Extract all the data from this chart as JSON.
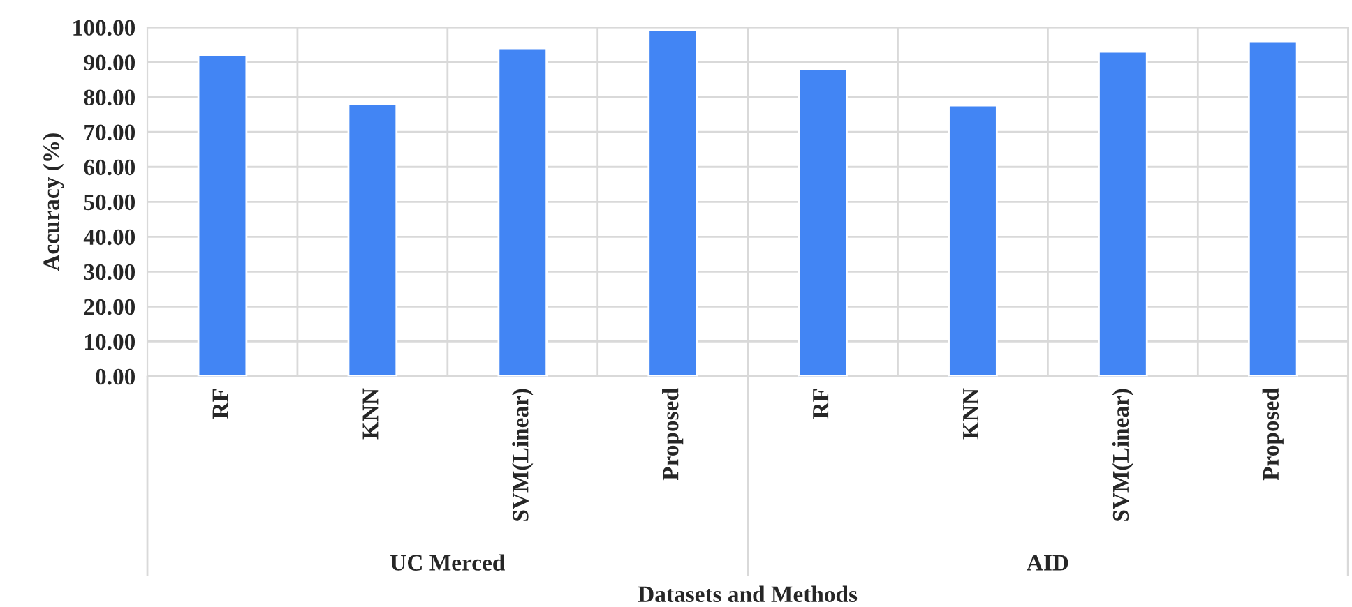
{
  "chart_data": {
    "type": "bar",
    "xlabel": "Datasets and Methods",
    "ylabel": "Accuracy (%)",
    "categories": [
      "RF",
      "KNN",
      "SVM(Linear)",
      "Proposed",
      "RF",
      "KNN",
      "SVM(Linear)",
      "Proposed"
    ],
    "values": [
      92.1,
      78.0,
      94.0,
      99.1,
      87.9,
      77.6,
      93.0,
      96.0
    ],
    "color": "#4285f4",
    "ylim": [
      0,
      100
    ],
    "yticks": [
      {
        "value": 0,
        "label": "0.00"
      },
      {
        "value": 10,
        "label": "10.00"
      },
      {
        "value": 20,
        "label": "20.00"
      },
      {
        "value": 30,
        "label": "30.00"
      },
      {
        "value": 40,
        "label": "40.00"
      },
      {
        "value": 50,
        "label": "50.00"
      },
      {
        "value": 60,
        "label": "60.00"
      },
      {
        "value": 70,
        "label": "70.00"
      },
      {
        "value": 80,
        "label": "80.00"
      },
      {
        "value": 90,
        "label": "90.00"
      },
      {
        "value": 100,
        "label": "100.00"
      }
    ],
    "annotations": [
      "UC Merced",
      "AID"
    ],
    "grid": true
  }
}
